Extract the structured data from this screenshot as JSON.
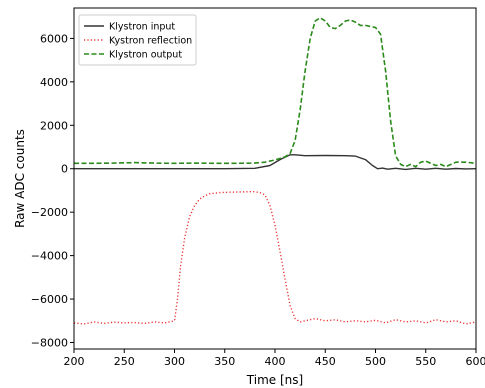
{
  "chart_data": {
    "type": "line",
    "xlabel": "Time [ns]",
    "ylabel": "Raw ADC counts",
    "xlim": [
      200,
      600
    ],
    "ylim": [
      -8300,
      7400
    ],
    "x_ticks": [
      200,
      250,
      300,
      350,
      400,
      450,
      500,
      550,
      600
    ],
    "y_ticks": [
      -8000,
      -6000,
      -4000,
      -2000,
      0,
      2000,
      4000,
      6000
    ],
    "x_tick_labels": [
      "200",
      "250",
      "300",
      "350",
      "400",
      "450",
      "500",
      "550",
      "600"
    ],
    "y_tick_labels": [
      "−8000",
      "−6000",
      "−4000",
      "−2000",
      "0",
      "2000",
      "4000",
      "6000"
    ],
    "legend_position": "upper-left",
    "grid": false,
    "series": [
      {
        "name": "Klystron input",
        "color": "#333333",
        "style": "solid",
        "x": [
          200,
          250,
          300,
          350,
          380,
          395,
          405,
          415,
          420,
          430,
          450,
          470,
          480,
          490,
          497,
          502,
          507,
          512,
          520,
          530,
          540,
          550,
          560,
          570,
          580,
          590,
          600
        ],
        "y": [
          0,
          0,
          0,
          0,
          20,
          150,
          420,
          640,
          640,
          600,
          610,
          600,
          580,
          420,
          150,
          0,
          30,
          -20,
          20,
          -30,
          20,
          -20,
          20,
          -20,
          10,
          -10,
          0
        ]
      },
      {
        "name": "Kystron reflection",
        "color": "#ee3333",
        "style": "dotted",
        "x": [
          200,
          210,
          220,
          230,
          240,
          250,
          260,
          270,
          280,
          290,
          300,
          303,
          306,
          310,
          315,
          320,
          325,
          330,
          335,
          345,
          355,
          365,
          375,
          380,
          385,
          390,
          395,
          400,
          405,
          410,
          415,
          420,
          425,
          430,
          440,
          450,
          460,
          470,
          480,
          490,
          500,
          510,
          520,
          530,
          540,
          550,
          560,
          570,
          580,
          590,
          600
        ],
        "y": [
          -7100,
          -7150,
          -7050,
          -7120,
          -7060,
          -7100,
          -7080,
          -7120,
          -7050,
          -7100,
          -7000,
          -6000,
          -4500,
          -3200,
          -2200,
          -1700,
          -1400,
          -1250,
          -1150,
          -1100,
          -1080,
          -1070,
          -1060,
          -1060,
          -1100,
          -1200,
          -1700,
          -2600,
          -3800,
          -5100,
          -6300,
          -6900,
          -7050,
          -7000,
          -6900,
          -7000,
          -6950,
          -7050,
          -7000,
          -7050,
          -6980,
          -7100,
          -6950,
          -7050,
          -7000,
          -7100,
          -6950,
          -7050,
          -7000,
          -7150,
          -7050
        ]
      },
      {
        "name": "Klystron output",
        "color": "#2a8a1a",
        "style": "dashed",
        "x": [
          200,
          220,
          240,
          260,
          280,
          300,
          320,
          340,
          360,
          380,
          390,
          400,
          410,
          415,
          420,
          425,
          430,
          435,
          440,
          445,
          450,
          455,
          460,
          465,
          470,
          475,
          480,
          485,
          490,
          495,
          500,
          505,
          510,
          515,
          520,
          525,
          530,
          535,
          540,
          545,
          550,
          555,
          560,
          565,
          570,
          580,
          590,
          600
        ],
        "y": [
          250,
          250,
          260,
          280,
          260,
          250,
          260,
          250,
          250,
          260,
          300,
          400,
          550,
          700,
          1300,
          2700,
          4500,
          6000,
          6800,
          6950,
          6800,
          6500,
          6450,
          6600,
          6800,
          6850,
          6750,
          6600,
          6600,
          6550,
          6500,
          6200,
          4500,
          2200,
          600,
          200,
          100,
          200,
          100,
          300,
          350,
          250,
          150,
          200,
          100,
          300,
          300,
          250
        ]
      }
    ]
  }
}
